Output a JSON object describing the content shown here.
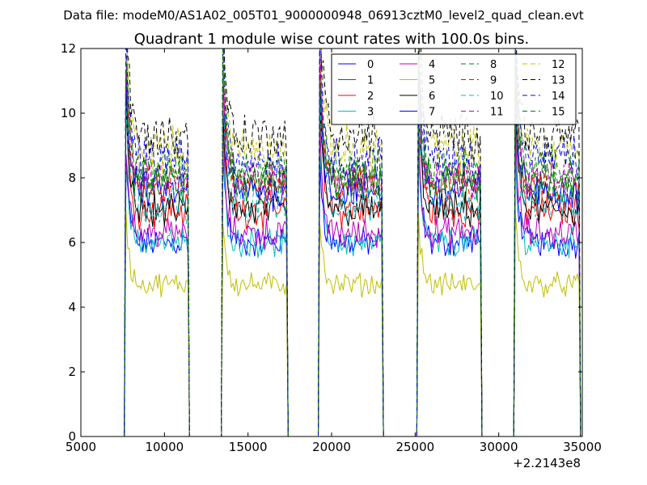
{
  "chart_data": {
    "type": "line",
    "suptitle": "Data file: modeM0/AS1A02_005T01_9000000948_06913cztM0_level2_quad_clean.evt",
    "title": "Quadrant 1 module wise count rates with 100.0s bins.",
    "xlabel": "",
    "ylabel": "",
    "x_offset_label": "+2.2143e8",
    "xlim": [
      5000,
      35000
    ],
    "ylim": [
      0,
      12
    ],
    "xticks": [
      5000,
      10000,
      15000,
      20000,
      25000,
      30000,
      35000
    ],
    "xtick_labels": [
      "5000",
      "10000",
      "15000",
      "20000",
      "25000",
      "30000",
      "35000"
    ],
    "yticks": [
      0,
      2,
      4,
      6,
      8,
      10,
      12
    ],
    "ytick_labels": [
      "0",
      "2",
      "4",
      "6",
      "8",
      "10",
      "12"
    ],
    "grid": false,
    "legend_position": "top-right",
    "bin_size_s": 100,
    "gaps": [
      [
        11500,
        13400
      ],
      [
        17400,
        19200
      ],
      [
        23100,
        25100
      ],
      [
        29000,
        30900
      ]
    ],
    "dips": [
      [
        13800,
        14100
      ],
      [
        20200,
        20500
      ],
      [
        26300,
        26600
      ],
      [
        32300,
        32600
      ]
    ],
    "active_segments": [
      [
        7700,
        11400
      ],
      [
        13500,
        17300
      ],
      [
        19300,
        23050
      ],
      [
        25200,
        28950
      ],
      [
        31000,
        34800
      ]
    ],
    "series": [
      {
        "name": "0",
        "color": "#0000ff",
        "dash": "solid",
        "level": 6.0
      },
      {
        "name": "1",
        "color": "#008000",
        "dash": "solid",
        "level": 7.8
      },
      {
        "name": "2",
        "color": "#ff0000",
        "dash": "solid",
        "level": 7.0
      },
      {
        "name": "3",
        "color": "#00bfbf",
        "dash": "solid",
        "level": 6.0
      },
      {
        "name": "4",
        "color": "#bf00bf",
        "dash": "solid",
        "level": 6.3
      },
      {
        "name": "5",
        "color": "#bfbf00",
        "dash": "solid",
        "level": 4.7
      },
      {
        "name": "6",
        "color": "#000000",
        "dash": "solid",
        "level": 7.0
      },
      {
        "name": "7",
        "color": "#0000ff",
        "dash": "solid",
        "level": 7.6
      },
      {
        "name": "8",
        "color": "#008000",
        "dash": "dashed",
        "level": 8.3
      },
      {
        "name": "9",
        "color": "#ff0000",
        "dash": "dashed",
        "level": 7.8
      },
      {
        "name": "10",
        "color": "#00bfbf",
        "dash": "dashed",
        "level": 7.2
      },
      {
        "name": "11",
        "color": "#bf00bf",
        "dash": "dashed",
        "level": 8.0
      },
      {
        "name": "12",
        "color": "#bfbf00",
        "dash": "dashed",
        "level": 8.9
      },
      {
        "name": "13",
        "color": "#000000",
        "dash": "dashed",
        "level": 9.3
      },
      {
        "name": "14",
        "color": "#0000ff",
        "dash": "dashed",
        "level": 8.6
      },
      {
        "name": "15",
        "color": "#008000",
        "dash": "dashed",
        "level": 8.0
      }
    ]
  }
}
